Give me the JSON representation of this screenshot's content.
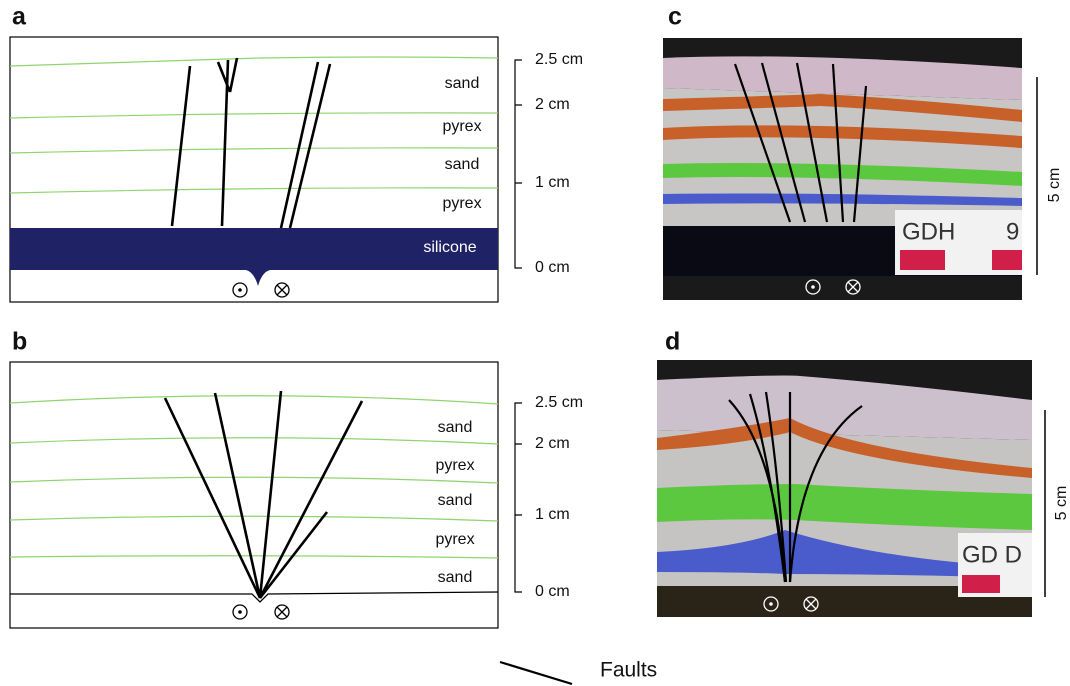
{
  "panels": [
    {
      "label": "a",
      "layers": [
        "sand",
        "pyrex",
        "sand",
        "pyrex",
        "silicone"
      ],
      "scale": [
        "2.5 cm",
        "2 cm",
        "1 cm",
        "0 cm"
      ]
    },
    {
      "label": "b",
      "layers": [
        "sand",
        "pyrex",
        "sand",
        "pyrex",
        "sand"
      ],
      "scale": [
        "2.5 cm",
        "2 cm",
        "1 cm",
        "0 cm"
      ]
    },
    {
      "label": "c",
      "sign": [
        "GDH",
        "9"
      ],
      "scale": "5 cm"
    },
    {
      "label": "d",
      "sign": "GD D",
      "scale": "5 cm"
    }
  ],
  "legend": {
    "label": "Faults"
  }
}
